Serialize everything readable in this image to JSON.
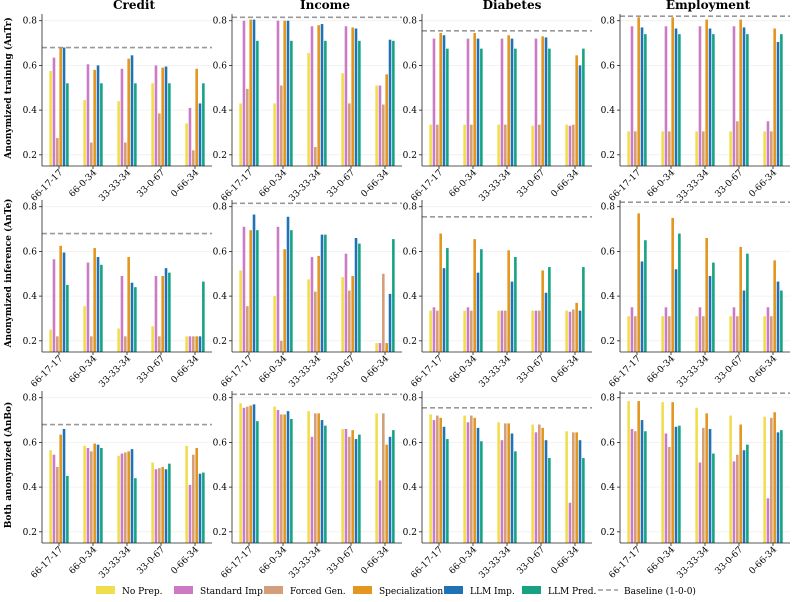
{
  "colors": {
    "no_prep": "#f0de4f",
    "standard_imp": "#cc7ac4",
    "forced_gen": "#d39e7b",
    "specialization": "#e39720",
    "llm_imp": "#1f73b5",
    "llm_pred": "#17a383",
    "baseline": "#999999"
  },
  "legend": [
    {
      "label": "No Prep.",
      "color_key": "no_prep",
      "kind": "bar"
    },
    {
      "label": "Standard Imp.",
      "color_key": "standard_imp",
      "kind": "bar"
    },
    {
      "label": "Forced Gen.",
      "color_key": "forced_gen",
      "kind": "bar"
    },
    {
      "label": "Specialization",
      "color_key": "specialization",
      "kind": "bar"
    },
    {
      "label": "LLM Imp.",
      "color_key": "llm_imp",
      "kind": "bar"
    },
    {
      "label": "LLM Pred.",
      "color_key": "llm_pred",
      "kind": "bar"
    },
    {
      "label": "Baseline (1-0-0)",
      "color_key": "baseline",
      "kind": "dash"
    }
  ],
  "chart_data": {
    "type": "bar",
    "columns": [
      "Credit",
      "Income",
      "Diabetes",
      "Employment"
    ],
    "rows": [
      "Anonymized training (AnTr)",
      "Anonymized inference (AnTe)",
      "Both anonymized (AnBo)"
    ],
    "categories": [
      "66-17-17",
      "66-0-34",
      "33-33-34",
      "33-0-67",
      "0-66-34"
    ],
    "series_names": [
      "No Prep.",
      "Standard Imp.",
      "Forced Gen.",
      "Specialization",
      "LLM Imp.",
      "LLM Pred."
    ],
    "ylim": [
      0.15,
      0.83
    ],
    "yticks": [
      "0.2",
      "0.4",
      "0.6",
      "0.8"
    ],
    "panels": [
      {
        "row": 0,
        "col": 0,
        "baseline": 0.68,
        "values": [
          [
            0.575,
            0.635,
            0.275,
            0.68,
            0.68,
            0.52
          ],
          [
            0.445,
            0.605,
            0.255,
            0.58,
            0.6,
            0.52
          ],
          [
            0.44,
            0.585,
            0.255,
            0.63,
            0.645,
            0.52
          ],
          [
            0.52,
            0.6,
            0.385,
            0.59,
            0.595,
            0.52
          ],
          [
            0.34,
            0.41,
            0.22,
            0.585,
            0.43,
            0.52
          ]
        ]
      },
      {
        "row": 0,
        "col": 1,
        "baseline": 0.815,
        "values": [
          [
            0.43,
            0.8,
            0.495,
            0.805,
            0.805,
            0.71
          ],
          [
            0.43,
            0.8,
            0.51,
            0.8,
            0.8,
            0.71
          ],
          [
            0.655,
            0.775,
            0.235,
            0.78,
            0.785,
            0.71
          ],
          [
            0.565,
            0.775,
            0.43,
            0.77,
            0.765,
            0.71
          ],
          [
            0.51,
            0.51,
            0.425,
            0.56,
            0.715,
            0.71
          ]
        ]
      },
      {
        "row": 0,
        "col": 2,
        "baseline": 0.755,
        "values": [
          [
            0.335,
            0.72,
            0.335,
            0.745,
            0.735,
            0.675
          ],
          [
            0.335,
            0.72,
            0.335,
            0.745,
            0.72,
            0.675
          ],
          [
            0.335,
            0.72,
            0.335,
            0.735,
            0.72,
            0.675
          ],
          [
            0.33,
            0.72,
            0.335,
            0.73,
            0.725,
            0.675
          ],
          [
            0.335,
            0.33,
            0.335,
            0.645,
            0.6,
            0.675
          ]
        ]
      },
      {
        "row": 0,
        "col": 3,
        "baseline": 0.82,
        "values": [
          [
            0.305,
            0.775,
            0.305,
            0.815,
            0.77,
            0.74
          ],
          [
            0.305,
            0.775,
            0.305,
            0.815,
            0.765,
            0.74
          ],
          [
            0.305,
            0.775,
            0.305,
            0.805,
            0.765,
            0.74
          ],
          [
            0.305,
            0.775,
            0.35,
            0.805,
            0.77,
            0.74
          ],
          [
            0.305,
            0.35,
            0.305,
            0.765,
            0.705,
            0.74
          ]
        ]
      },
      {
        "row": 1,
        "col": 0,
        "baseline": 0.68,
        "values": [
          [
            0.25,
            0.565,
            0.22,
            0.625,
            0.595,
            0.45
          ],
          [
            0.355,
            0.55,
            0.22,
            0.615,
            0.575,
            0.54
          ],
          [
            0.255,
            0.49,
            0.22,
            0.575,
            0.46,
            0.44
          ],
          [
            0.265,
            0.49,
            0.22,
            0.49,
            0.525,
            0.505
          ],
          [
            0.22,
            0.22,
            0.22,
            0.22,
            0.22,
            0.465
          ]
        ]
      },
      {
        "row": 1,
        "col": 1,
        "baseline": 0.815,
        "values": [
          [
            0.515,
            0.71,
            0.355,
            0.695,
            0.765,
            0.695
          ],
          [
            0.4,
            0.71,
            0.2,
            0.61,
            0.755,
            0.695
          ],
          [
            0.475,
            0.575,
            0.42,
            0.58,
            0.675,
            0.675
          ],
          [
            0.485,
            0.59,
            0.425,
            0.49,
            0.66,
            0.635
          ],
          [
            0.19,
            0.19,
            0.5,
            0.19,
            0.41,
            0.655
          ]
        ]
      },
      {
        "row": 1,
        "col": 2,
        "baseline": 0.755,
        "values": [
          [
            0.335,
            0.35,
            0.335,
            0.68,
            0.525,
            0.615
          ],
          [
            0.335,
            0.35,
            0.335,
            0.655,
            0.505,
            0.61
          ],
          [
            0.335,
            0.335,
            0.335,
            0.605,
            0.465,
            0.575
          ],
          [
            0.335,
            0.335,
            0.335,
            0.515,
            0.415,
            0.53
          ],
          [
            0.335,
            0.33,
            0.34,
            0.37,
            0.335,
            0.53
          ]
        ]
      },
      {
        "row": 1,
        "col": 3,
        "baseline": 0.82,
        "values": [
          [
            0.31,
            0.35,
            0.31,
            0.77,
            0.555,
            0.65
          ],
          [
            0.31,
            0.35,
            0.31,
            0.75,
            0.52,
            0.68
          ],
          [
            0.31,
            0.35,
            0.31,
            0.66,
            0.49,
            0.55
          ],
          [
            0.31,
            0.35,
            0.31,
            0.62,
            0.425,
            0.59
          ],
          [
            0.31,
            0.35,
            0.31,
            0.56,
            0.465,
            0.425
          ]
        ]
      },
      {
        "row": 2,
        "col": 0,
        "baseline": 0.68,
        "values": [
          [
            0.565,
            0.545,
            0.49,
            0.635,
            0.66,
            0.45
          ],
          [
            0.585,
            0.575,
            0.56,
            0.595,
            0.59,
            0.575
          ],
          [
            0.54,
            0.55,
            0.555,
            0.56,
            0.57,
            0.44
          ],
          [
            0.51,
            0.48,
            0.485,
            0.49,
            0.48,
            0.505
          ],
          [
            0.585,
            0.41,
            0.545,
            0.575,
            0.46,
            0.465
          ]
        ]
      },
      {
        "row": 2,
        "col": 1,
        "baseline": 0.815,
        "values": [
          [
            0.775,
            0.755,
            0.76,
            0.765,
            0.77,
            0.695
          ],
          [
            0.76,
            0.745,
            0.725,
            0.725,
            0.74,
            0.705
          ],
          [
            0.74,
            0.625,
            0.73,
            0.73,
            0.7,
            0.675
          ],
          [
            0.66,
            0.66,
            0.625,
            0.655,
            0.615,
            0.635
          ],
          [
            0.73,
            0.43,
            0.73,
            0.59,
            0.625,
            0.655
          ]
        ]
      },
      {
        "row": 2,
        "col": 2,
        "baseline": 0.755,
        "values": [
          [
            0.725,
            0.7,
            0.72,
            0.71,
            0.67,
            0.615
          ],
          [
            0.72,
            0.69,
            0.72,
            0.71,
            0.665,
            0.605
          ],
          [
            0.69,
            0.61,
            0.685,
            0.685,
            0.64,
            0.56
          ],
          [
            0.68,
            0.645,
            0.68,
            0.665,
            0.61,
            0.53
          ],
          [
            0.65,
            0.33,
            0.645,
            0.645,
            0.61,
            0.53
          ]
        ]
      },
      {
        "row": 2,
        "col": 3,
        "baseline": 0.82,
        "values": [
          [
            0.785,
            0.66,
            0.65,
            0.785,
            0.7,
            0.65
          ],
          [
            0.78,
            0.64,
            0.58,
            0.78,
            0.67,
            0.675
          ],
          [
            0.755,
            0.51,
            0.665,
            0.73,
            0.66,
            0.55
          ],
          [
            0.72,
            0.515,
            0.545,
            0.68,
            0.565,
            0.59
          ],
          [
            0.715,
            0.35,
            0.71,
            0.735,
            0.645,
            0.655
          ]
        ]
      }
    ]
  }
}
